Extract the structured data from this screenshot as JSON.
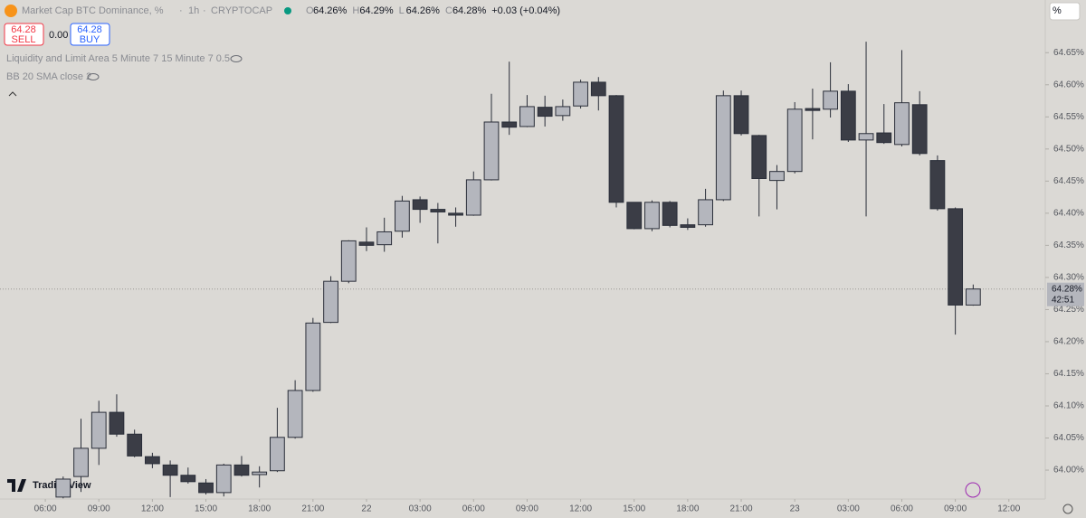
{
  "ui": {
    "title": "Market Cap BTC Dominance, %",
    "interval": "1h",
    "source": "CRYPTOCAP",
    "ohlc": [
      {
        "key": "O",
        "text": "64.26%"
      },
      {
        "key": "H",
        "text": "64.29%"
      },
      {
        "key": "L",
        "text": "64.26%"
      },
      {
        "key": "C",
        "text": "64.28%"
      }
    ],
    "change": "+0.03 (+0.04%)",
    "sell_price": "64.28",
    "sell": "SELL",
    "spread": "0.00",
    "buy_price": "64.28",
    "buy": "BUY",
    "indicators": [
      "Liquidity and Limit Area 5 Minute 7 15 Minute 7 0.5",
      "BB 20 SMA close 2"
    ],
    "logo": "TradingView",
    "scale_button": "%",
    "last_price_label": "64.28%",
    "countdown": "42:51"
  },
  "chart_data": {
    "type": "candlestick",
    "x": [
      7,
      8,
      9,
      10,
      11,
      12,
      13,
      14,
      15,
      16,
      17,
      18,
      19,
      20,
      21,
      22,
      23,
      24,
      25,
      26,
      27,
      28,
      29,
      30,
      31,
      32,
      33,
      34,
      35,
      36,
      37,
      38,
      39,
      40,
      41,
      42,
      43,
      44,
      45,
      46,
      47,
      48,
      49,
      50,
      51,
      52,
      53,
      54,
      55,
      56,
      57,
      58
    ],
    "open": [
      63.958,
      63.99,
      64.034,
      64.09,
      64.056,
      64.021,
      64.008,
      63.992,
      63.98,
      63.965,
      64.008,
      63.993,
      63.999,
      64.051,
      64.124,
      64.23,
      64.294,
      64.355,
      64.351,
      64.372,
      64.421,
      64.406,
      64.4,
      64.397,
      64.452,
      64.542,
      64.535,
      64.565,
      64.552,
      64.567,
      64.604,
      64.583,
      64.417,
      64.376,
      64.417,
      64.382,
      64.382,
      64.421,
      64.583,
      64.521,
      64.451,
      64.465,
      64.563,
      64.562,
      64.59,
      64.514,
      64.525,
      64.507,
      64.569,
      64.482,
      64.407,
      64.257
    ],
    "high": [
      63.99,
      64.08,
      64.108,
      64.118,
      64.063,
      64.027,
      64.015,
      64.004,
      63.986,
      64.01,
      64.022,
      64.006,
      64.097,
      64.14,
      64.237,
      64.302,
      64.358,
      64.378,
      64.393,
      64.427,
      64.426,
      64.416,
      64.409,
      64.465,
      64.586,
      64.636,
      64.584,
      64.583,
      64.577,
      64.608,
      64.612,
      64.584,
      64.417,
      64.42,
      64.419,
      64.392,
      64.438,
      64.591,
      64.591,
      64.522,
      64.475,
      64.573,
      64.594,
      64.635,
      64.601,
      64.667,
      64.57,
      64.654,
      64.59,
      64.49,
      64.409,
      64.289
    ],
    "low": [
      63.956,
      63.966,
      64.008,
      64.052,
      64.02,
      64.003,
      63.958,
      63.979,
      63.962,
      63.959,
      63.99,
      63.973,
      63.997,
      64.049,
      64.122,
      64.229,
      64.291,
      64.341,
      64.34,
      64.362,
      64.385,
      64.353,
      64.379,
      64.396,
      64.451,
      64.522,
      64.534,
      64.535,
      64.544,
      64.563,
      64.56,
      64.409,
      64.375,
      64.372,
      64.378,
      64.374,
      64.379,
      64.419,
      64.521,
      64.395,
      64.406,
      64.462,
      64.515,
      64.549,
      64.511,
      64.395,
      64.508,
      64.504,
      64.49,
      64.404,
      64.211,
      64.256
    ],
    "close": [
      63.986,
      64.034,
      64.09,
      64.056,
      64.022,
      64.01,
      63.992,
      63.982,
      63.965,
      64.008,
      63.992,
      63.997,
      64.051,
      64.124,
      64.229,
      64.294,
      64.357,
      64.35,
      64.371,
      64.419,
      64.406,
      64.402,
      64.397,
      64.452,
      64.542,
      64.534,
      64.566,
      64.551,
      64.566,
      64.604,
      64.583,
      64.417,
      64.376,
      64.417,
      64.381,
      64.378,
      64.421,
      64.583,
      64.524,
      64.454,
      64.465,
      64.562,
      64.56,
      64.59,
      64.514,
      64.524,
      64.51,
      64.572,
      64.493,
      64.407,
      64.257,
      64.282
    ],
    "up_color": "#b4b6bd",
    "down_color": "#3b3d46",
    "wick_color": "#2a2e39",
    "xlim": [
      3.46,
      62.04
    ],
    "xticks": [
      {
        "value": 6,
        "label": "06:00"
      },
      {
        "value": 9,
        "label": "09:00"
      },
      {
        "value": 12,
        "label": "12:00"
      },
      {
        "value": 15,
        "label": "15:00"
      },
      {
        "value": 18,
        "label": "18:00"
      },
      {
        "value": 21,
        "label": "21:00"
      },
      {
        "value": 24,
        "label": "22"
      },
      {
        "value": 27,
        "label": "03:00"
      },
      {
        "value": 30,
        "label": "06:00"
      },
      {
        "value": 33,
        "label": "09:00"
      },
      {
        "value": 36,
        "label": "12:00"
      },
      {
        "value": 39,
        "label": "15:00"
      },
      {
        "value": 42,
        "label": "18:00"
      },
      {
        "value": 45,
        "label": "21:00"
      },
      {
        "value": 48,
        "label": "23"
      },
      {
        "value": 51,
        "label": "03:00"
      },
      {
        "value": 54,
        "label": "06:00"
      },
      {
        "value": 57,
        "label": "09:00"
      },
      {
        "value": 60,
        "label": "12:00"
      }
    ],
    "ylim": [
      63.955,
      64.732
    ],
    "yticks": [
      {
        "value": 64.0,
        "label": "64.00%"
      },
      {
        "value": 64.05,
        "label": "64.05%"
      },
      {
        "value": 64.1,
        "label": "64.10%"
      },
      {
        "value": 64.15,
        "label": "64.15%"
      },
      {
        "value": 64.2,
        "label": "64.20%"
      },
      {
        "value": 64.25,
        "label": "64.25%"
      },
      {
        "value": 64.3,
        "label": "64.30%"
      },
      {
        "value": 64.35,
        "label": "64.35%"
      },
      {
        "value": 64.4,
        "label": "64.40%"
      },
      {
        "value": 64.45,
        "label": "64.45%"
      },
      {
        "value": 64.5,
        "label": "64.50%"
      },
      {
        "value": 64.55,
        "label": "64.55%"
      },
      {
        "value": 64.6,
        "label": "64.60%"
      },
      {
        "value": 64.65,
        "label": "64.65%"
      }
    ]
  }
}
